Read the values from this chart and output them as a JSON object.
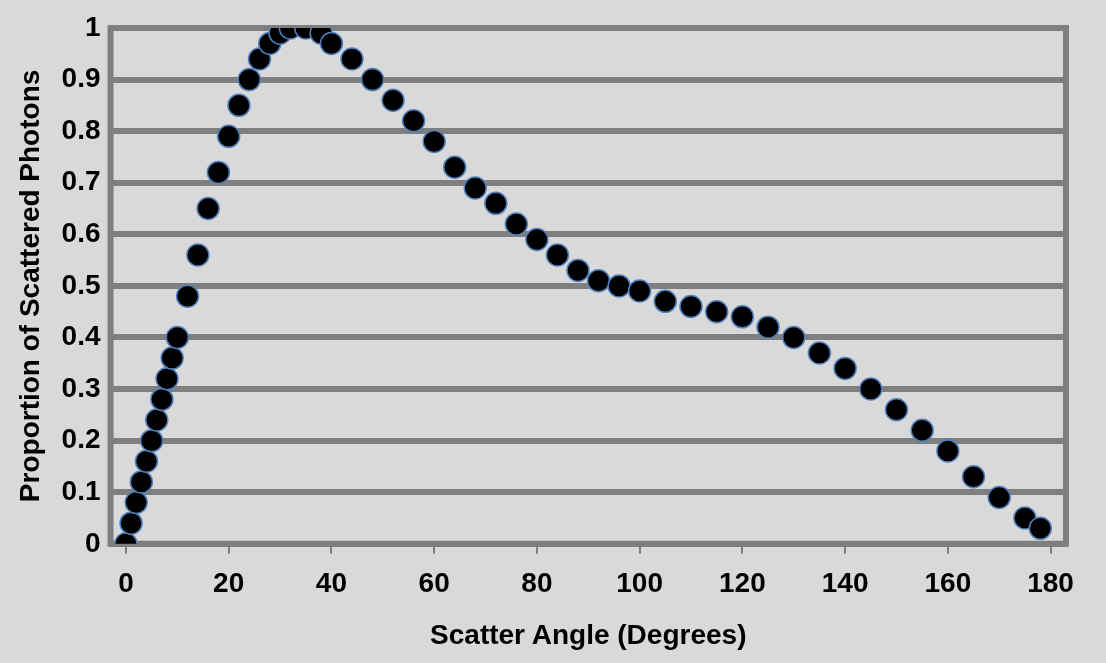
{
  "chart_data": {
    "type": "scatter",
    "xlabel": "Scatter Angle (Degrees)",
    "ylabel": "Proportion of Scattered Photons",
    "x": [
      0,
      1,
      2,
      3,
      4,
      5,
      6,
      7,
      8,
      9,
      10,
      12,
      14,
      16,
      18,
      20,
      22,
      24,
      26,
      28,
      30,
      32,
      35,
      38,
      40,
      44,
      48,
      52,
      56,
      60,
      64,
      68,
      72,
      76,
      80,
      84,
      88,
      92,
      96,
      100,
      105,
      110,
      115,
      120,
      125,
      130,
      135,
      140,
      145,
      150,
      155,
      160,
      165,
      170,
      175,
      178
    ],
    "series": [
      {
        "color": "#000000",
        "values": [
          0,
          0.04,
          0.08,
          0.12,
          0.16,
          0.2,
          0.24,
          0.28,
          0.32,
          0.36,
          0.4,
          0.48,
          0.56,
          0.65,
          0.72,
          0.79,
          0.85,
          0.9,
          0.94,
          0.97,
          0.99,
          1,
          1,
          0.99,
          0.97,
          0.94,
          0.9,
          0.86,
          0.82,
          0.78,
          0.73,
          0.69,
          0.66,
          0.62,
          0.59,
          0.56,
          0.53,
          0.51,
          0.5,
          0.49,
          0.47,
          0.46,
          0.45,
          0.44,
          0.42,
          0.4,
          0.37,
          0.34,
          0.3,
          0.26,
          0.22,
          0.18,
          0.13,
          0.09,
          0.05,
          0.03
        ]
      }
    ],
    "xlim": [
      -3,
      183
    ],
    "xticks": [
      0,
      20,
      40,
      60,
      80,
      100,
      120,
      140,
      160,
      180
    ],
    "ylim": [
      0,
      1
    ],
    "yticks": [
      0,
      0.1,
      0.2,
      0.3,
      0.4,
      0.5,
      0.6,
      0.7,
      0.8,
      0.9,
      1
    ],
    "grid": "y",
    "legend": false,
    "marker": "circle"
  }
}
